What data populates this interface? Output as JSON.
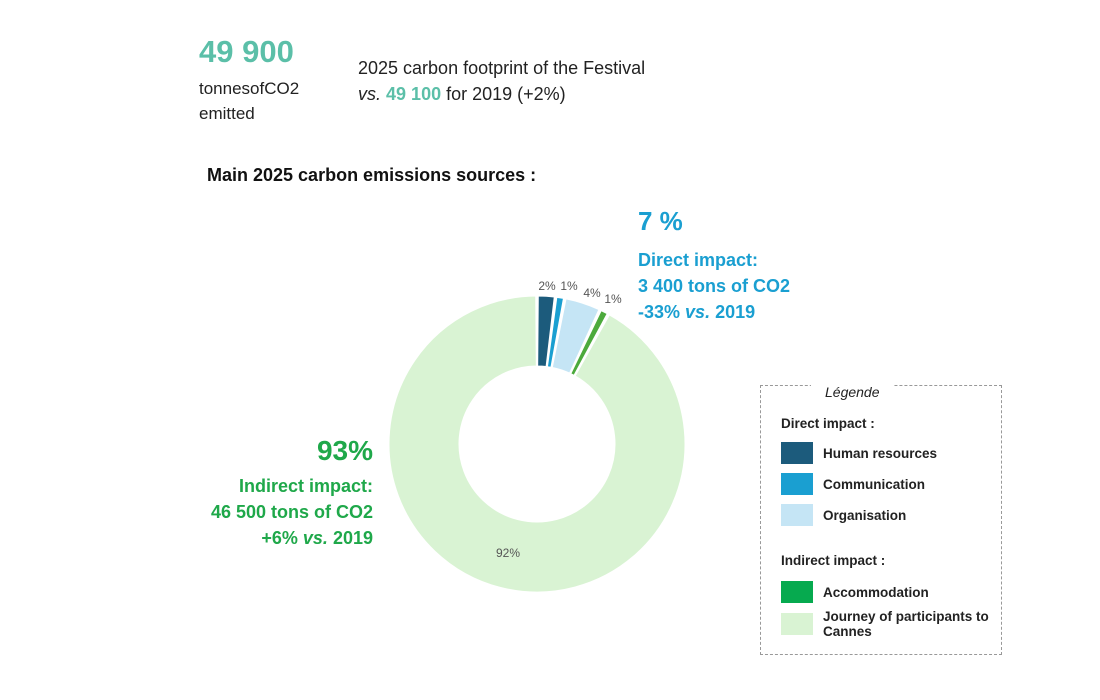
{
  "header": {
    "total_value": "49 900",
    "unit_line1": "tonnesofCO2",
    "unit_line2": "emitted",
    "headline_line1": "2025 carbon footprint of the Festival",
    "headline_vs": "vs.",
    "headline_highlight": "49 100",
    "headline_rest": "for 2019 (+2%)"
  },
  "subtitle": "Main 2025 carbon emissions sources :",
  "direct_callout": {
    "pct": "7 %",
    "line1": "Direct impact:",
    "line2": "3 400 tons of CO2",
    "line3_prefix": "-33%",
    "line3_vs": "vs.",
    "line3_year": "2019",
    "color": "#1a9fd1"
  },
  "indirect_callout": {
    "pct": "93%",
    "line1": "Indirect impact:",
    "line2": "46 500 tons of CO2",
    "line3_prefix": "+6%",
    "line3_vs": "vs.",
    "line3_year": "2019",
    "color": "#1fa84a"
  },
  "chart_data": {
    "type": "pie",
    "title": "Main 2025 carbon emissions sources :",
    "categories": [
      "Human resources",
      "Communication",
      "Organisation",
      "Accommodation",
      "Journey of participants to Cannes"
    ],
    "values": [
      2,
      1,
      4,
      1,
      92
    ],
    "labels": [
      "2%",
      "1%",
      "4%",
      "1%",
      "92%"
    ],
    "colors": [
      "#1c5b7c",
      "#1a9fd1",
      "#c5e5f5",
      "#4caa3c",
      "#d9f3d3"
    ],
    "donut": true,
    "legend_position": "right"
  },
  "legend": {
    "title": "Légende",
    "direct_label": "Direct impact :",
    "indirect_label": "Indirect impact :",
    "items": [
      {
        "label": "Human resources",
        "color": "#1c5b7c"
      },
      {
        "label": "Communication",
        "color": "#1a9fd1"
      },
      {
        "label": "Organisation",
        "color": "#c5e5f5"
      },
      {
        "label": "Accommodation",
        "color": "#06aa4f"
      },
      {
        "label": "Journey of participants to Cannes",
        "color": "#d9f3d3"
      }
    ]
  }
}
